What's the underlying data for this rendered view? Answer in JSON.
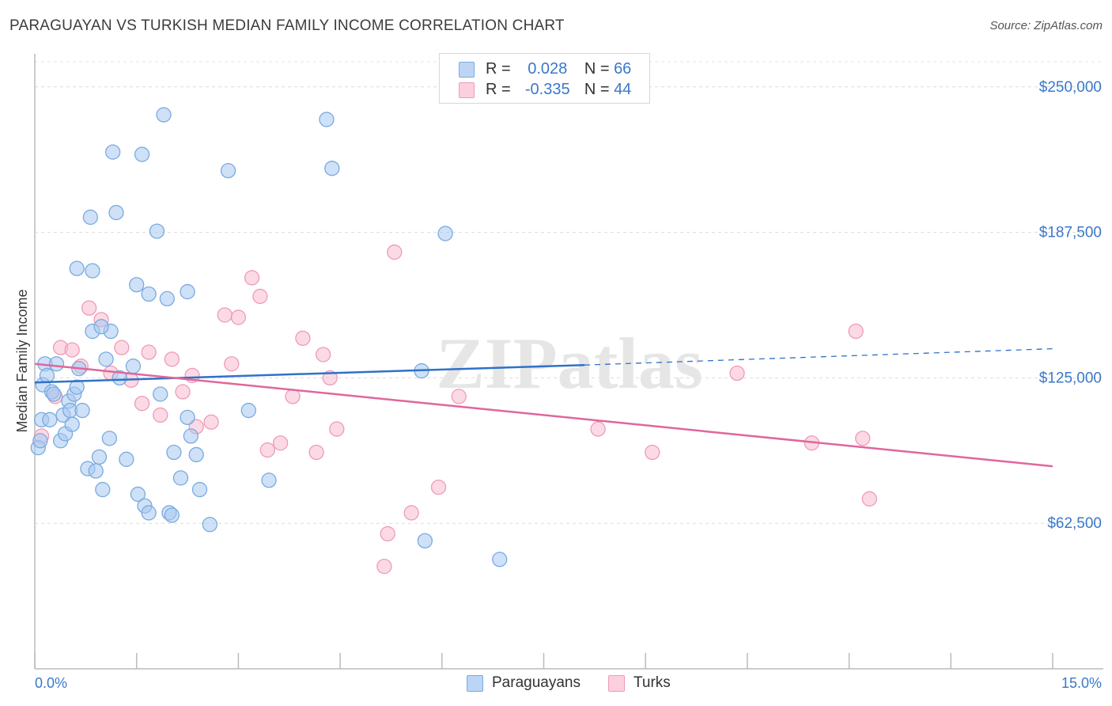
{
  "title": "PARAGUAYAN VS TURKISH MEDIAN FAMILY INCOME CORRELATION CHART",
  "source": "Source: ZipAtlas.com",
  "watermark": "ZIPatlas",
  "legend_top": [
    {
      "r_label": "R =",
      "r_value": "0.028",
      "n_label": "N =",
      "n_value": "66"
    },
    {
      "r_label": "R =",
      "r_value": "-0.335",
      "n_label": "N =",
      "n_value": "44"
    }
  ],
  "legend_bottom": [
    "Paraguayans",
    "Turks"
  ],
  "colors": {
    "blue_fill": "#a8c8f0",
    "blue_stroke": "#7aaae0",
    "blue_line": "#2f72c8",
    "pink_fill": "#f7bcd0",
    "pink_stroke": "#f09ab8",
    "pink_line": "#e0679a",
    "accent_text": "#3a78c9"
  },
  "chart_data": {
    "type": "scatter",
    "title": "PARAGUAYAN VS TURKISH MEDIAN FAMILY INCOME CORRELATION CHART",
    "xlabel": "",
    "ylabel": "Median Family Income",
    "xlim": [
      0,
      15
    ],
    "ylim": [
      0,
      262500
    ],
    "x_tick_labels": [
      "0.0%",
      "15.0%"
    ],
    "y_tick_values": [
      62500,
      125000,
      187500,
      250000
    ],
    "y_tick_labels": [
      "$62,500",
      "$125,000",
      "$187,500",
      "$250,000"
    ],
    "grid": true,
    "series": [
      {
        "name": "Paraguayans",
        "points": [
          [
            0.05,
            95000
          ],
          [
            0.08,
            98000
          ],
          [
            0.1,
            107000
          ],
          [
            0.12,
            122000
          ],
          [
            0.15,
            131000
          ],
          [
            0.18,
            126000
          ],
          [
            0.22,
            107000
          ],
          [
            0.25,
            119000
          ],
          [
            0.28,
            118000
          ],
          [
            0.32,
            131000
          ],
          [
            0.38,
            98000
          ],
          [
            0.42,
            109000
          ],
          [
            0.45,
            101000
          ],
          [
            0.5,
            115000
          ],
          [
            0.52,
            111000
          ],
          [
            0.55,
            105000
          ],
          [
            0.58,
            118000
          ],
          [
            0.62,
            121000
          ],
          [
            0.65,
            129000
          ],
          [
            0.7,
            111000
          ],
          [
            0.78,
            86000
          ],
          [
            0.85,
            145000
          ],
          [
            0.9,
            85000
          ],
          [
            0.95,
            91000
          ],
          [
            1.0,
            77000
          ],
          [
            1.05,
            133000
          ],
          [
            1.1,
            99000
          ],
          [
            1.12,
            145000
          ],
          [
            1.25,
            125000
          ],
          [
            1.35,
            90000
          ],
          [
            1.45,
            130000
          ],
          [
            1.52,
            75000
          ],
          [
            1.62,
            70000
          ],
          [
            1.68,
            67000
          ],
          [
            1.85,
            118000
          ],
          [
            1.98,
            67000
          ],
          [
            2.02,
            66000
          ],
          [
            2.05,
            93000
          ],
          [
            2.15,
            82000
          ],
          [
            2.25,
            108000
          ],
          [
            2.3,
            100000
          ],
          [
            2.38,
            92000
          ],
          [
            2.43,
            77000
          ],
          [
            2.58,
            62000
          ],
          [
            3.15,
            111000
          ],
          [
            3.45,
            81000
          ],
          [
            5.7,
            128000
          ],
          [
            5.75,
            55000
          ],
          [
            6.85,
            47000
          ],
          [
            0.62,
            172000
          ],
          [
            0.85,
            171000
          ],
          [
            1.5,
            165000
          ],
          [
            1.68,
            161000
          ],
          [
            1.95,
            159000
          ],
          [
            2.25,
            162000
          ],
          [
            0.98,
            147000
          ],
          [
            1.8,
            188000
          ],
          [
            0.82,
            194000
          ],
          [
            1.2,
            196000
          ],
          [
            1.15,
            222000
          ],
          [
            1.58,
            221000
          ],
          [
            1.9,
            238000
          ],
          [
            2.85,
            214000
          ],
          [
            4.3,
            236000
          ],
          [
            4.38,
            215000
          ],
          [
            6.05,
            187000
          ]
        ]
      },
      {
        "name": "Turks",
        "points": [
          [
            0.1,
            100000
          ],
          [
            0.3,
            117000
          ],
          [
            0.38,
            138000
          ],
          [
            0.55,
            137000
          ],
          [
            0.68,
            130000
          ],
          [
            0.8,
            155000
          ],
          [
            0.98,
            150000
          ],
          [
            1.12,
            127000
          ],
          [
            1.28,
            138000
          ],
          [
            1.42,
            124000
          ],
          [
            1.58,
            114000
          ],
          [
            1.68,
            136000
          ],
          [
            1.85,
            109000
          ],
          [
            2.02,
            133000
          ],
          [
            2.18,
            119000
          ],
          [
            2.32,
            126000
          ],
          [
            2.38,
            104000
          ],
          [
            2.6,
            106000
          ],
          [
            2.8,
            152000
          ],
          [
            2.9,
            131000
          ],
          [
            3.0,
            151000
          ],
          [
            3.2,
            168000
          ],
          [
            3.32,
            160000
          ],
          [
            3.43,
            94000
          ],
          [
            3.62,
            97000
          ],
          [
            3.8,
            117000
          ],
          [
            3.95,
            142000
          ],
          [
            4.15,
            93000
          ],
          [
            4.25,
            135000
          ],
          [
            4.35,
            125000
          ],
          [
            4.45,
            103000
          ],
          [
            5.15,
            44000
          ],
          [
            5.2,
            58000
          ],
          [
            5.3,
            179000
          ],
          [
            5.55,
            67000
          ],
          [
            5.95,
            78000
          ],
          [
            6.25,
            117000
          ],
          [
            8.3,
            103000
          ],
          [
            9.1,
            93000
          ],
          [
            10.35,
            127000
          ],
          [
            11.45,
            97000
          ],
          [
            12.1,
            145000
          ],
          [
            12.2,
            99000
          ],
          [
            12.3,
            73000
          ]
        ]
      }
    ],
    "trend_lines": [
      {
        "series": "Paraguayans",
        "x": [
          0,
          8.1
        ],
        "y": [
          123000,
          130500
        ],
        "dashed_extension_to_x": 15,
        "dashed_end_y": 137500
      },
      {
        "series": "Turks",
        "x": [
          0,
          15
        ],
        "y": [
          131000,
          87000
        ]
      }
    ]
  }
}
